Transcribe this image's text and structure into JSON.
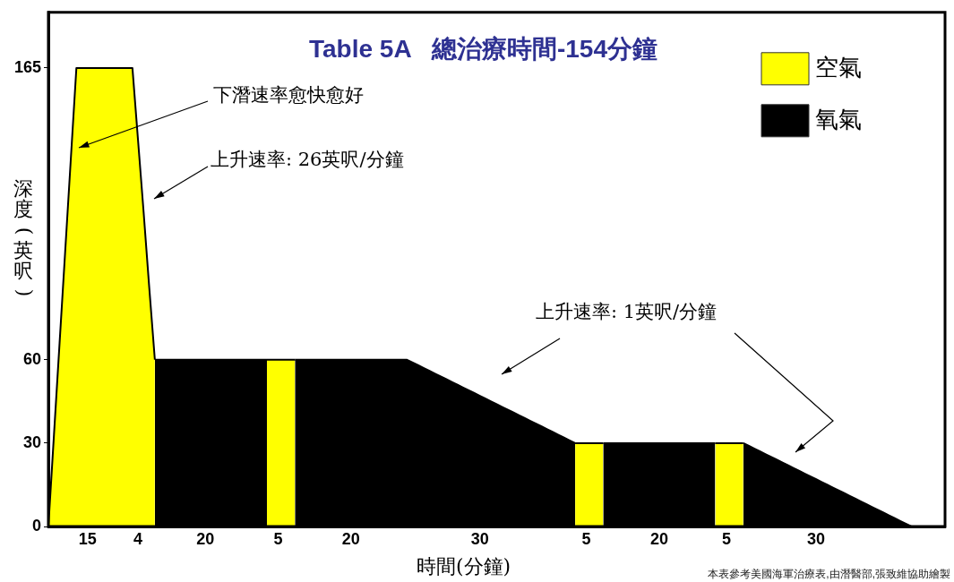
{
  "chart_data": {
    "type": "area",
    "title": "Table 5A   總治療時間-154分鐘",
    "xlabel": "時間(分鐘)",
    "ylabel": "深度(英呎)",
    "categories": [
      null,
      null,
      null,
      null,
      null,
      null,
      null,
      "15",
      null,
      null,
      null,
      null,
      null,
      null,
      null,
      null,
      "4",
      null,
      null,
      null,
      null,
      null,
      null,
      null,
      null,
      null,
      null,
      null,
      "20",
      null,
      null,
      null,
      null,
      null,
      null,
      null,
      null,
      null,
      null,
      null,
      null,
      "5",
      null,
      null,
      null,
      null,
      null,
      null,
      null,
      null,
      null,
      null,
      null,
      null,
      "20",
      null,
      null,
      null,
      null,
      null,
      null,
      null,
      null,
      null,
      null,
      null,
      null,
      null,
      null,
      null,
      null,
      null,
      null,
      null,
      null,
      null,
      null,
      "30",
      null,
      null,
      null,
      null,
      null,
      null,
      null,
      null,
      null,
      null,
      null,
      null,
      null,
      null,
      null,
      null,
      null,
      null,
      "5",
      null,
      null,
      null,
      null,
      null,
      null,
      null,
      null,
      null,
      null,
      null,
      null,
      "20",
      null,
      null,
      null,
      null,
      null,
      null,
      null,
      null,
      null,
      null,
      null,
      "5",
      null,
      null,
      null,
      null,
      null,
      null,
      null,
      null,
      null,
      null,
      null,
      null,
      null,
      null,
      null,
      "30",
      null,
      null,
      null,
      null,
      null,
      null,
      null,
      null,
      null,
      null,
      null,
      null,
      null,
      null,
      null,
      null,
      null,
      null,
      null,
      null,
      null,
      null,
      null
    ],
    "ylim": [
      0,
      185
    ],
    "yticks": [
      0,
      30,
      60,
      165
    ],
    "series": [
      {
        "name": "空氣",
        "color": "#ffff00",
        "values": [
          0,
          33,
          66,
          99,
          132,
          165,
          165,
          165,
          165,
          165,
          165,
          165,
          165,
          165,
          165,
          165,
          139,
          113,
          86,
          60,
          null,
          null,
          null,
          null,
          null,
          null,
          null,
          null,
          null,
          null,
          null,
          null,
          null,
          null,
          null,
          null,
          null,
          null,
          null,
          60,
          60,
          60,
          60,
          60,
          60,
          null,
          null,
          null,
          null,
          null,
          null,
          null,
          null,
          null,
          null,
          null,
          null,
          null,
          null,
          null,
          null,
          null,
          null,
          null,
          null,
          null,
          null,
          null,
          null,
          null,
          null,
          null,
          null,
          null,
          null,
          null,
          null,
          null,
          null,
          null,
          null,
          null,
          null,
          null,
          null,
          null,
          null,
          null,
          null,
          null,
          null,
          null,
          null,
          null,
          30,
          30,
          30,
          30,
          30,
          30,
          null,
          null,
          null,
          null,
          null,
          null,
          null,
          null,
          null,
          null,
          null,
          null,
          null,
          null,
          null,
          null,
          null,
          null,
          null,
          30,
          30,
          30,
          30,
          30,
          30,
          null,
          null,
          null,
          null,
          null,
          null,
          null,
          null,
          null,
          null,
          null,
          null,
          null,
          null,
          null,
          null,
          null,
          null,
          null,
          null,
          null,
          null,
          null,
          null,
          null,
          null,
          null,
          null,
          null,
          null,
          null,
          null,
          null,
          null,
          null,
          null
        ]
      },
      {
        "name": "氧氣",
        "color": "#000000",
        "values": [
          null,
          null,
          null,
          null,
          null,
          null,
          null,
          null,
          null,
          null,
          null,
          null,
          null,
          null,
          null,
          null,
          null,
          null,
          null,
          60,
          60,
          60,
          60,
          60,
          60,
          60,
          60,
          60,
          60,
          60,
          60,
          60,
          60,
          60,
          60,
          60,
          60,
          60,
          60,
          60,
          null,
          null,
          null,
          null,
          60,
          60,
          60,
          60,
          60,
          60,
          60,
          60,
          60,
          60,
          60,
          60,
          60,
          60,
          60,
          60,
          60,
          60,
          60,
          60,
          60,
          59,
          58,
          57,
          56,
          55,
          54,
          53,
          52,
          51,
          50,
          49,
          48,
          47,
          46,
          45,
          44,
          43,
          42,
          41,
          40,
          39,
          38,
          37,
          36,
          35,
          34,
          33,
          32,
          31,
          30,
          null,
          null,
          null,
          null,
          30,
          30,
          30,
          30,
          30,
          30,
          30,
          30,
          30,
          30,
          30,
          30,
          30,
          30,
          30,
          30,
          30,
          30,
          30,
          30,
          30,
          null,
          null,
          null,
          null,
          30,
          29,
          28,
          27,
          26,
          25,
          24,
          23,
          22,
          21,
          20,
          19,
          18,
          17,
          16,
          15,
          14,
          13,
          12,
          11,
          10,
          9,
          8,
          7,
          6,
          5,
          4,
          3,
          2,
          1,
          0,
          null,
          null,
          null,
          null,
          null,
          null
        ]
      }
    ],
    "annotations": [
      "下潛速率愈快愈好",
      "上升速率: 26英呎/分鐘",
      "上升速率: 1英呎/分鐘",
      "本表參考美國海軍治療表,由潛醫部,張致維協助繪製"
    ],
    "legend": "top right",
    "grid": false
  }
}
